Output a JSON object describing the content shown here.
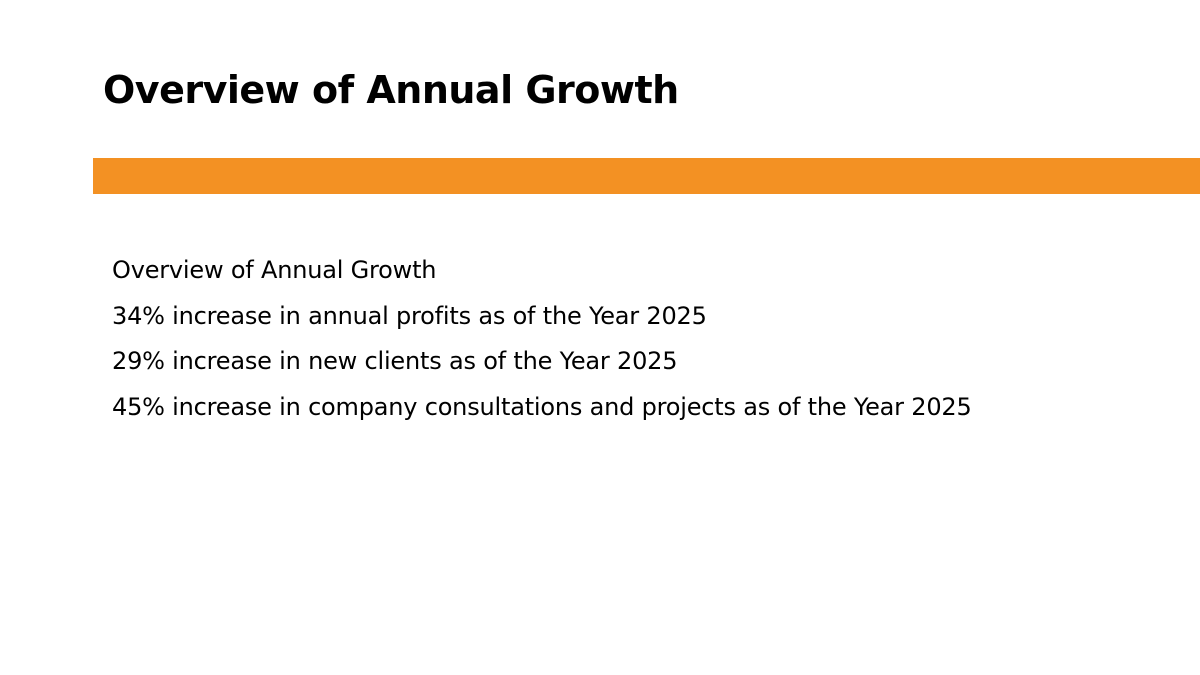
{
  "slide": {
    "title": "Overview of Annual Growth",
    "accent_color": "#F39123",
    "lines": [
      "Overview of Annual Growth",
      "34% increase in annual profits as of the Year 2025",
      "29% increase in new clients as of the Year 2025",
      "45% increase in company consultations and projects as of the Year 2025"
    ]
  }
}
